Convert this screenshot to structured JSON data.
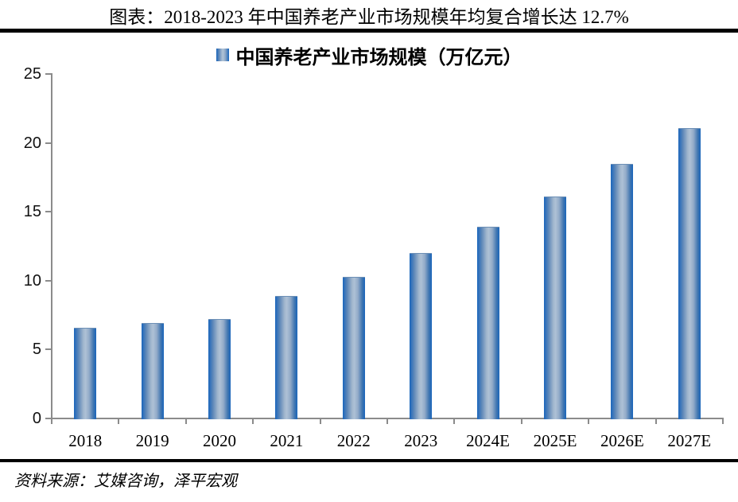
{
  "header": {
    "title": "图表：2018-2023 年中国养老产业市场规模年均复合增长达 12.7%"
  },
  "legend": {
    "label": "中国养老产业市场规模（万亿元）"
  },
  "footer": {
    "source": "资料来源：艾媒咨询，泽平宏观"
  },
  "colors": {
    "bar_edge": "#1a66bc",
    "bar_center": "#aec1d6",
    "axis": "#8b8b8b",
    "rule": "#000000",
    "text": "#000000"
  },
  "chart_data": {
    "type": "bar",
    "title": "图表：2018-2023 年中国养老产业市场规模年均复合增长达 12.7%",
    "legend_entries": [
      "中国养老产业市场规模（万亿元）"
    ],
    "legend_position": "top-center",
    "categories": [
      "2018",
      "2019",
      "2020",
      "2021",
      "2022",
      "2023",
      "2024E",
      "2025E",
      "2026E",
      "2027E"
    ],
    "values": [
      6.6,
      6.9,
      7.2,
      8.9,
      10.3,
      12.0,
      13.9,
      16.1,
      18.5,
      21.1
    ],
    "xlabel": "",
    "ylabel": "",
    "ylim": [
      0,
      25
    ],
    "ytick_step": 5,
    "yticks": [
      0,
      5,
      10,
      15,
      20,
      25
    ],
    "grid": false,
    "source": "资料来源：艾媒咨询，泽平宏观"
  }
}
